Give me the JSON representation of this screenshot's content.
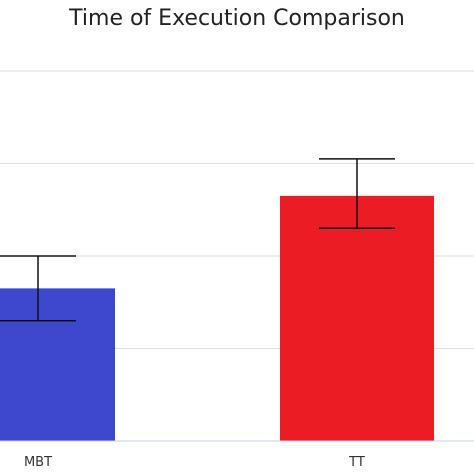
{
  "chart_data": {
    "type": "bar",
    "title": "Time of Execution Comparison",
    "xlabel": "",
    "ylabel": "",
    "categories": [
      "MBT",
      "TT"
    ],
    "series": [
      {
        "values": [
          1.65,
          2.65
        ],
        "error_low": [
          1.3,
          2.3
        ],
        "error_high": [
          2.0,
          3.05
        ],
        "colors": [
          "#3d48cf",
          "#ec1c24"
        ]
      }
    ],
    "ylim": [
      0,
      4
    ],
    "grid": true,
    "gridline_color": "#d9dde8",
    "errorbar_color": "#111111"
  }
}
